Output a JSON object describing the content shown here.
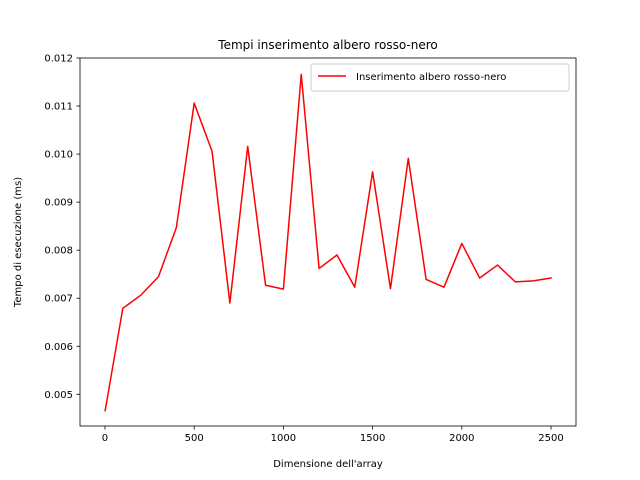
{
  "chart_data": {
    "type": "line",
    "title": "Tempi inserimento albero rosso-nero",
    "xlabel": "Dimensione dell'array",
    "ylabel": "Tempo di esecuzione (ms)",
    "xlim": [
      -140,
      2640
    ],
    "ylim": [
      0.00434,
      0.012
    ],
    "xticks": [
      0,
      500,
      1000,
      1500,
      2000,
      2500
    ],
    "xtick_labels": [
      "0",
      "500",
      "1000",
      "1500",
      "2000",
      "2500"
    ],
    "yticks": [
      0.005,
      0.006,
      0.007,
      0.008,
      0.009,
      0.01,
      0.011,
      0.012
    ],
    "ytick_labels": [
      "0.005",
      "0.006",
      "0.007",
      "0.008",
      "0.009",
      "0.010",
      "0.011",
      "0.012"
    ],
    "grid": false,
    "legend_position": "top-right",
    "series": [
      {
        "name": "Inserimento albero rosso-nero",
        "color": "#ff0000",
        "x": [
          1,
          100,
          200,
          300,
          400,
          500,
          600,
          700,
          800,
          900,
          1000,
          1100,
          1200,
          1300,
          1400,
          1500,
          1600,
          1700,
          1800,
          1900,
          2000,
          2100,
          2200,
          2300,
          2400,
          2500
        ],
        "y": [
          0.00466,
          0.00679,
          0.00706,
          0.00745,
          0.00847,
          0.01106,
          0.01006,
          0.0069,
          0.01016,
          0.00727,
          0.00719,
          0.01166,
          0.00762,
          0.0079,
          0.00723,
          0.00963,
          0.0072,
          0.00991,
          0.00739,
          0.00723,
          0.00814,
          0.00742,
          0.00769,
          0.00734,
          0.00736,
          0.00742
        ]
      }
    ]
  }
}
